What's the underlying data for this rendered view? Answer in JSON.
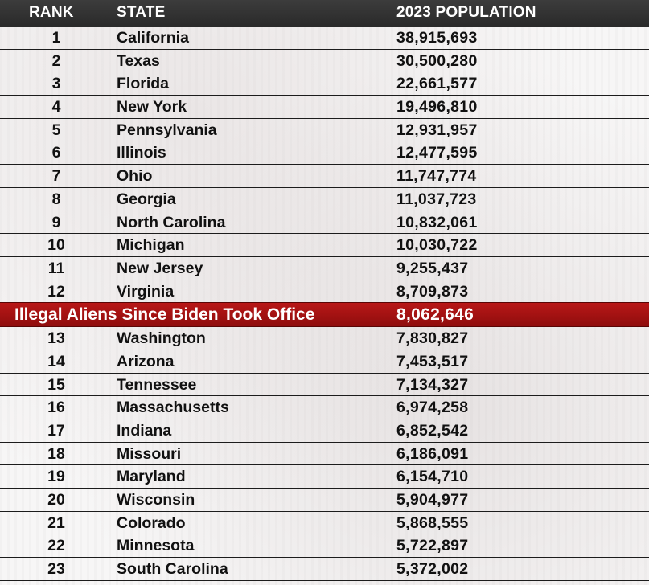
{
  "header": {
    "rank": "RANK",
    "state": "STATE",
    "population": "2023 POPULATION"
  },
  "rows_top": [
    {
      "rank": "1",
      "state": "California",
      "population": "38,915,693"
    },
    {
      "rank": "2",
      "state": "Texas",
      "population": "30,500,280"
    },
    {
      "rank": "3",
      "state": "Florida",
      "population": "22,661,577"
    },
    {
      "rank": "4",
      "state": "New York",
      "population": "19,496,810"
    },
    {
      "rank": "5",
      "state": "Pennsylvania",
      "population": "12,931,957"
    },
    {
      "rank": "6",
      "state": "Illinois",
      "population": "12,477,595"
    },
    {
      "rank": "7",
      "state": "Ohio",
      "population": "11,747,774"
    },
    {
      "rank": "8",
      "state": "Georgia",
      "population": "11,037,723"
    },
    {
      "rank": "9",
      "state": "North Carolina",
      "population": "10,832,061"
    },
    {
      "rank": "10",
      "state": "Michigan",
      "population": "10,030,722"
    },
    {
      "rank": "11",
      "state": "New Jersey",
      "population": "9,255,437"
    },
    {
      "rank": "12",
      "state": "Virginia",
      "population": "8,709,873"
    }
  ],
  "highlight": {
    "label": "Illegal Aliens Since Biden Took Office",
    "population": "8,062,646",
    "color": "#b81717"
  },
  "rows_bottom": [
    {
      "rank": "13",
      "state": "Washington",
      "population": "7,830,827"
    },
    {
      "rank": "14",
      "state": "Arizona",
      "population": "7,453,517"
    },
    {
      "rank": "15",
      "state": "Tennessee",
      "population": "7,134,327"
    },
    {
      "rank": "16",
      "state": "Massachusetts",
      "population": "6,974,258"
    },
    {
      "rank": "17",
      "state": "Indiana",
      "population": "6,852,542"
    },
    {
      "rank": "18",
      "state": "Missouri",
      "population": "6,186,091"
    },
    {
      "rank": "19",
      "state": "Maryland",
      "population": "6,154,710"
    },
    {
      "rank": "20",
      "state": "Wisconsin",
      "population": "5,904,977"
    },
    {
      "rank": "21",
      "state": "Colorado",
      "population": "5,868,555"
    },
    {
      "rank": "22",
      "state": "Minnesota",
      "population": "5,722,897"
    },
    {
      "rank": "23",
      "state": "South Carolina",
      "population": "5,372,002"
    }
  ]
}
